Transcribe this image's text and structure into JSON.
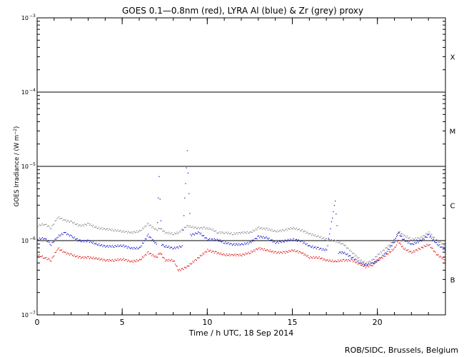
{
  "chart_data": {
    "type": "scatter",
    "title": "GOES 0.1—0.8nm (red), LYRA Al (blue) & Zr (grey) proxy",
    "xlabel": "Time / h UTC, 18 Sep 2014",
    "ylabel_main": "GOES Irradiance / (W m",
    "ylabel_sup": "−2",
    "ylabel_end": ")",
    "xlim": [
      0,
      24
    ],
    "ylim": [
      1e-07,
      0.001
    ],
    "yscale": "log",
    "xticks": [
      "0",
      "5",
      "10",
      "15",
      "20"
    ],
    "xtick_values": [
      0,
      5,
      10,
      15,
      20
    ],
    "yticks": [
      {
        "value": 1e-07,
        "base": "10",
        "exp": "−7"
      },
      {
        "value": 1e-06,
        "base": "10",
        "exp": "−6"
      },
      {
        "value": 1e-05,
        "base": "10",
        "exp": "−5"
      },
      {
        "value": 0.0001,
        "base": "10",
        "exp": "−4"
      },
      {
        "value": 0.001,
        "base": "10",
        "exp": "−3"
      }
    ],
    "class_levels": [
      {
        "label": "X",
        "y": 0.0003
      },
      {
        "label": "M",
        "y": 3e-05
      },
      {
        "label": "C",
        "y": 3e-06
      },
      {
        "label": "B",
        "y": 3e-07
      }
    ],
    "threshold_lines": [
      0.0001,
      1e-05,
      1e-06
    ],
    "series": [
      {
        "color": "#808080",
        "points": [
          [
            0,
            1.6e-06
          ],
          [
            0.4,
            1.7e-06
          ],
          [
            0.8,
            1.5e-06
          ],
          [
            1.2,
            2.1e-06
          ],
          [
            1.6,
            1.9e-06
          ],
          [
            2,
            1.8e-06
          ],
          [
            2.5,
            1.6e-06
          ],
          [
            3,
            1.7e-06
          ],
          [
            3.5,
            1.5e-06
          ],
          [
            4,
            1.45e-06
          ],
          [
            4.5,
            1.4e-06
          ],
          [
            5,
            1.35e-06
          ],
          [
            5.5,
            1.3e-06
          ],
          [
            6,
            1.35e-06
          ],
          [
            6.5,
            1.7e-06
          ],
          [
            7,
            1.4e-06
          ],
          [
            7.2,
            1.5e-06
          ],
          [
            7.5,
            1.3e-06
          ],
          [
            8,
            1.25e-06
          ],
          [
            8.3,
            1.3e-06
          ],
          [
            8.8,
            1.6e-06
          ],
          [
            9.3,
            1.5e-06
          ],
          [
            9.8,
            1.5e-06
          ],
          [
            10.2,
            1.45e-06
          ],
          [
            10.6,
            1.3e-06
          ],
          [
            11,
            1.3e-06
          ],
          [
            11.5,
            1.25e-06
          ],
          [
            12,
            1.3e-06
          ],
          [
            12.5,
            1.3e-06
          ],
          [
            13,
            1.5e-06
          ],
          [
            13.5,
            1.45e-06
          ],
          [
            14,
            1.35e-06
          ],
          [
            14.5,
            1.4e-06
          ],
          [
            15,
            1.5e-06
          ],
          [
            15.5,
            1.4e-06
          ],
          [
            16,
            1.25e-06
          ],
          [
            16.5,
            1.15e-06
          ],
          [
            17,
            1.05e-06
          ],
          [
            17.5,
            1e-06
          ],
          [
            18,
            9e-07
          ],
          [
            18.5,
            7e-07
          ],
          [
            19,
            5.5e-07
          ],
          [
            19.3,
            5e-07
          ],
          [
            19.7,
            5.5e-07
          ],
          [
            20,
            6.5e-07
          ],
          [
            20.5,
            8e-07
          ],
          [
            21,
            1.05e-06
          ],
          [
            21.2,
            1.35e-06
          ],
          [
            21.5,
            1.2e-06
          ],
          [
            22,
            1.05e-06
          ],
          [
            22.5,
            1.1e-06
          ],
          [
            23,
            1.3e-06
          ],
          [
            23.5,
            1e-06
          ],
          [
            24,
            8.5e-07
          ]
        ]
      },
      {
        "color": "#0000cc",
        "points": [
          [
            0,
            1.05e-06
          ],
          [
            0.4,
            1.1e-06
          ],
          [
            0.8,
            9e-07
          ],
          [
            1.2,
            1.15e-06
          ],
          [
            1.6,
            1.3e-06
          ],
          [
            2,
            1.15e-06
          ],
          [
            2.5,
            1e-06
          ],
          [
            3,
            1e-06
          ],
          [
            3.5,
            9e-07
          ],
          [
            4,
            8.5e-07
          ],
          [
            4.5,
            8.5e-07
          ],
          [
            5,
            8.7e-07
          ],
          [
            5.5,
            8e-07
          ],
          [
            6,
            8e-07
          ],
          [
            6.5,
            1.2e-06
          ],
          [
            7,
            9e-07
          ],
          [
            7.15,
            7.5e-06
          ],
          [
            7.3,
            9e-07
          ],
          [
            7.5,
            8.5e-07
          ],
          [
            8,
            8e-07
          ],
          [
            8.5,
            8.5e-07
          ],
          [
            8.8,
            1.6e-05
          ],
          [
            9,
            1.2e-06
          ],
          [
            9.5,
            1.3e-06
          ],
          [
            10,
            1.05e-06
          ],
          [
            10.5,
            1.05e-06
          ],
          [
            11,
            9.5e-07
          ],
          [
            11.5,
            9e-07
          ],
          [
            12,
            9e-07
          ],
          [
            12.5,
            9.5e-07
          ],
          [
            13,
            1.15e-06
          ],
          [
            13.5,
            1.1e-06
          ],
          [
            14,
            9.5e-07
          ],
          [
            14.5,
            1e-06
          ],
          [
            15,
            1.05e-06
          ],
          [
            15.5,
            1e-06
          ],
          [
            16,
            8.5e-07
          ],
          [
            16.5,
            8e-07
          ],
          [
            17,
            7.5e-07
          ],
          [
            17.5,
            3.5e-06
          ],
          [
            17.7,
            7e-07
          ],
          [
            18,
            7e-07
          ],
          [
            18.5,
            6e-07
          ],
          [
            19,
            5e-07
          ],
          [
            19.3,
            4.8e-07
          ],
          [
            19.7,
            5e-07
          ],
          [
            20,
            5.5e-07
          ],
          [
            20.5,
            7e-07
          ],
          [
            21,
            1e-06
          ],
          [
            21.2,
            1.3e-06
          ],
          [
            21.5,
            1.05e-06
          ],
          [
            22,
            9e-07
          ],
          [
            22.5,
            1e-06
          ],
          [
            23,
            1.2e-06
          ],
          [
            23.5,
            9e-07
          ],
          [
            24,
            7.5e-07
          ]
        ]
      },
      {
        "color": "#dd0000",
        "points": [
          [
            0,
            6.5e-07
          ],
          [
            0.4,
            6e-07
          ],
          [
            0.8,
            5.5e-07
          ],
          [
            1.2,
            8e-07
          ],
          [
            1.6,
            7e-07
          ],
          [
            2,
            6.5e-07
          ],
          [
            2.5,
            6e-07
          ],
          [
            3,
            6e-07
          ],
          [
            3.5,
            5.8e-07
          ],
          [
            4,
            5.5e-07
          ],
          [
            4.5,
            5.5e-07
          ],
          [
            5,
            5.7e-07
          ],
          [
            5.5,
            5.3e-07
          ],
          [
            6,
            5.5e-07
          ],
          [
            6.5,
            7e-07
          ],
          [
            7,
            6e-07
          ],
          [
            7.2,
            7e-07
          ],
          [
            7.5,
            5.5e-07
          ],
          [
            8,
            5.5e-07
          ],
          [
            8.3,
            4e-07
          ],
          [
            8.8,
            4.5e-07
          ],
          [
            10,
            7.5e-07
          ],
          [
            10.5,
            7e-07
          ],
          [
            11,
            6.5e-07
          ],
          [
            11.5,
            6.5e-07
          ],
          [
            12,
            6.5e-07
          ],
          [
            12.5,
            7e-07
          ],
          [
            13,
            8e-07
          ],
          [
            13.5,
            7.5e-07
          ],
          [
            14,
            7e-07
          ],
          [
            14.5,
            7e-07
          ],
          [
            15,
            7.5e-07
          ],
          [
            15.5,
            7e-07
          ],
          [
            16,
            6e-07
          ],
          [
            16.5,
            6e-07
          ],
          [
            17,
            5.5e-07
          ],
          [
            17.5,
            5.3e-07
          ],
          [
            18,
            5.5e-07
          ],
          [
            18.5,
            5.5e-07
          ],
          [
            19,
            4.8e-07
          ],
          [
            19.3,
            4.5e-07
          ],
          [
            19.7,
            4.8e-07
          ],
          [
            20,
            5.5e-07
          ],
          [
            20.5,
            6.5e-07
          ],
          [
            21,
            8e-07
          ],
          [
            21.2,
            1e-06
          ],
          [
            21.5,
            8e-07
          ],
          [
            22,
            7e-07
          ],
          [
            22.5,
            8e-07
          ],
          [
            23,
            9e-07
          ],
          [
            23.5,
            6.5e-07
          ],
          [
            24,
            5.5e-07
          ]
        ]
      }
    ]
  },
  "footer": {
    "credit": "ROB/SIDC, Brussels, Belgium"
  }
}
